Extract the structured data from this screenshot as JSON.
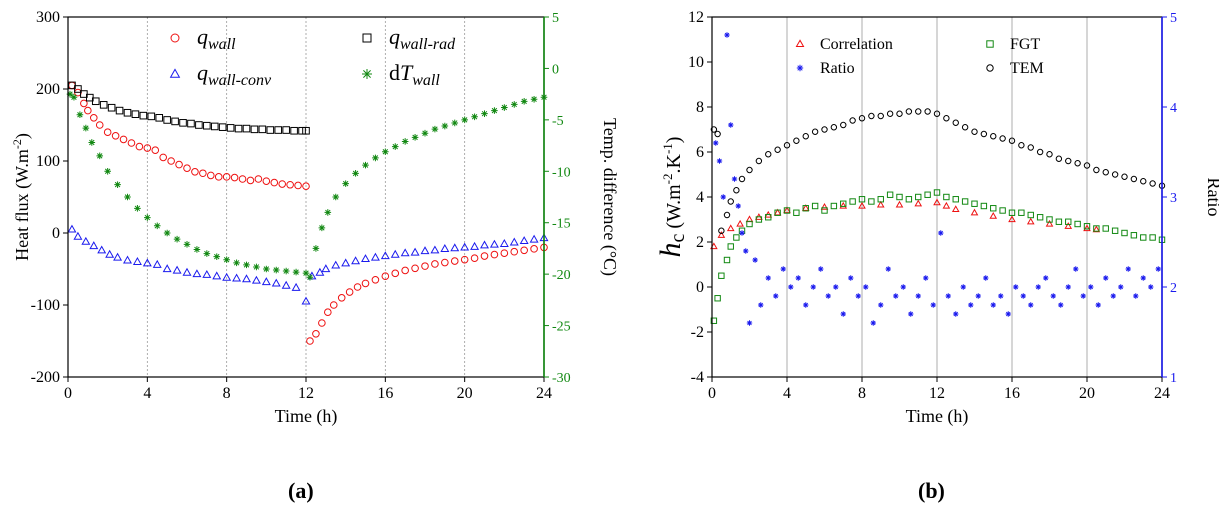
{
  "colors": {
    "red": "#ee1111",
    "blue": "#1a1aee",
    "black": "#000000",
    "green": "#118811",
    "gray": "#888888"
  },
  "panels": {
    "a_label": "(a)",
    "b_label": "(b)"
  },
  "chart_data": [
    {
      "type": "scatter",
      "xlabel": "Time (h)",
      "ylabel": "Heat flux (W.m",
      "ylabel_sup": "-2",
      "ylabel_tail": ")",
      "y2label": "Temp. difference (°C)",
      "xlim": [
        0,
        24
      ],
      "ylim": [
        -200,
        300
      ],
      "y2lim": [
        -30,
        5
      ],
      "xticks": [
        "0",
        "4",
        "8",
        "12",
        "16",
        "20",
        "24"
      ],
      "yticks": [
        "-200",
        "-100",
        "0",
        "100",
        "200",
        "300"
      ],
      "y2ticks": [
        "-30",
        "-25",
        "-20",
        "-15",
        "-10",
        "-5",
        "0",
        "5"
      ],
      "vertical_gridlines": [
        4,
        8,
        12,
        16,
        20
      ],
      "legend": [
        {
          "base": "q",
          "sub": "wall",
          "pre": "",
          "marker": "circle",
          "color": "#ee1111"
        },
        {
          "base": "q",
          "sub": "wall-rad",
          "pre": "",
          "marker": "square",
          "color": "#000000"
        },
        {
          "base": "q",
          "sub": "wall-conv",
          "pre": "",
          "marker": "triangle",
          "color": "#1a1aee"
        },
        {
          "base": "T",
          "sub": "wall",
          "pre": "d",
          "marker": "star",
          "color": "#118811"
        }
      ],
      "series": [
        {
          "name": "q_wall",
          "marker": "circle",
          "color": "#ee1111",
          "axis": "left",
          "x": [
            0.2,
            0.5,
            0.8,
            1.0,
            1.3,
            1.6,
            2.0,
            2.4,
            2.8,
            3.2,
            3.6,
            4.0,
            4.4,
            4.8,
            5.2,
            5.6,
            6.0,
            6.4,
            6.8,
            7.2,
            7.6,
            8.0,
            8.4,
            8.8,
            9.2,
            9.6,
            10.0,
            10.4,
            10.8,
            11.2,
            11.6,
            12.0,
            12.2,
            12.5,
            12.8,
            13.1,
            13.4,
            13.8,
            14.2,
            14.6,
            15.0,
            15.5,
            16.0,
            16.5,
            17.0,
            17.5,
            18.0,
            18.5,
            19.0,
            19.5,
            20.0,
            20.5,
            21.0,
            21.5,
            22.0,
            22.5,
            23.0,
            23.5,
            24.0
          ],
          "y": [
            205,
            195,
            180,
            170,
            160,
            150,
            140,
            135,
            130,
            125,
            120,
            118,
            115,
            105,
            100,
            95,
            90,
            85,
            83,
            80,
            78,
            78,
            77,
            75,
            73,
            75,
            72,
            70,
            68,
            67,
            66,
            65,
            -150,
            -140,
            -125,
            -110,
            -100,
            -90,
            -82,
            -75,
            -70,
            -65,
            -60,
            -56,
            -52,
            -49,
            -46,
            -43,
            -41,
            -39,
            -37,
            -35,
            -32,
            -30,
            -28,
            -26,
            -24,
            -22,
            -20
          ]
        },
        {
          "name": "q_wall-rad",
          "marker": "square",
          "color": "#000000",
          "axis": "left",
          "x": [
            0.2,
            0.5,
            0.8,
            1.1,
            1.4,
            1.8,
            2.2,
            2.6,
            3.0,
            3.4,
            3.8,
            4.2,
            4.6,
            5.0,
            5.4,
            5.8,
            6.2,
            6.6,
            7.0,
            7.4,
            7.8,
            8.2,
            8.6,
            9.0,
            9.4,
            9.8,
            10.2,
            10.6,
            11.0,
            11.4,
            11.8,
            12.0
          ],
          "y": [
            205,
            200,
            193,
            188,
            183,
            178,
            174,
            170,
            167,
            165,
            163,
            162,
            160,
            157,
            155,
            153,
            152,
            150,
            149,
            148,
            147,
            146,
            145,
            145,
            144,
            144,
            143,
            143,
            143,
            142,
            142,
            142
          ]
        },
        {
          "name": "q_wall-conv",
          "marker": "triangle",
          "color": "#1a1aee",
          "axis": "left",
          "x": [
            0.2,
            0.5,
            0.9,
            1.3,
            1.7,
            2.1,
            2.5,
            3.0,
            3.5,
            4.0,
            4.5,
            5.0,
            5.5,
            6.0,
            6.5,
            7.0,
            7.5,
            8.0,
            8.5,
            9.0,
            9.5,
            10.0,
            10.5,
            11.0,
            11.5,
            12.0,
            12.3,
            12.7,
            13.0,
            13.5,
            14.0,
            14.5,
            15.0,
            15.5,
            16.0,
            16.5,
            17.0,
            17.5,
            18.0,
            18.5,
            19.0,
            19.5,
            20.0,
            20.5,
            21.0,
            21.5,
            22.0,
            22.5,
            23.0,
            23.5,
            24.0
          ],
          "y": [
            5,
            -5,
            -12,
            -18,
            -24,
            -30,
            -34,
            -38,
            -40,
            -42,
            -44,
            -50,
            -52,
            -55,
            -57,
            -58,
            -60,
            -62,
            -63,
            -64,
            -66,
            -68,
            -70,
            -73,
            -76,
            -95,
            -60,
            -55,
            -50,
            -45,
            -42,
            -39,
            -36,
            -34,
            -32,
            -30,
            -28,
            -27,
            -25,
            -24,
            -22,
            -21,
            -20,
            -19,
            -17,
            -16,
            -15,
            -13,
            -11,
            -9,
            -7
          ]
        },
        {
          "name": "dT_wall",
          "marker": "star",
          "color": "#118811",
          "axis": "right",
          "x": [
            0.1,
            0.3,
            0.6,
            0.9,
            1.2,
            1.6,
            2.0,
            2.5,
            3.0,
            3.5,
            4.0,
            4.5,
            5.0,
            5.5,
            6.0,
            6.5,
            7.0,
            7.5,
            8.0,
            8.5,
            9.0,
            9.5,
            10.0,
            10.5,
            11.0,
            11.5,
            12.0,
            12.2,
            12.5,
            12.8,
            13.1,
            13.5,
            14.0,
            14.5,
            15.0,
            15.5,
            16.0,
            16.5,
            17.0,
            17.5,
            18.0,
            18.5,
            19.0,
            19.5,
            20.0,
            20.5,
            21.0,
            21.5,
            22.0,
            22.5,
            23.0,
            23.5,
            24.0
          ],
          "y": [
            -2.5,
            -2.8,
            -4.5,
            -5.8,
            -7.2,
            -8.5,
            -10.0,
            -11.3,
            -12.5,
            -13.6,
            -14.5,
            -15.3,
            -16.0,
            -16.6,
            -17.1,
            -17.6,
            -18.0,
            -18.3,
            -18.6,
            -18.9,
            -19.1,
            -19.3,
            -19.5,
            -19.6,
            -19.7,
            -19.8,
            -19.9,
            -20.3,
            -17.5,
            -15.5,
            -14.0,
            -12.5,
            -11.2,
            -10.2,
            -9.4,
            -8.7,
            -8.1,
            -7.6,
            -7.1,
            -6.7,
            -6.3,
            -5.9,
            -5.6,
            -5.3,
            -5.0,
            -4.7,
            -4.4,
            -4.1,
            -3.8,
            -3.5,
            -3.2,
            -3.0,
            -2.8
          ]
        }
      ]
    },
    {
      "type": "scatter",
      "xlabel": "Time (h)",
      "ylabel_main": "h",
      "ylabel_sub": "c",
      "ylabel_rest": " (W.m",
      "ylabel_sup1": "-2",
      "ylabel_mid": ".K",
      "ylabel_sup2": "-1",
      "ylabel_tail": ")",
      "y2label": "Ratio",
      "xlim": [
        0,
        24
      ],
      "ylim": [
        -4,
        12
      ],
      "y2lim": [
        1,
        5
      ],
      "xticks": [
        "0",
        "4",
        "8",
        "12",
        "16",
        "20",
        "24"
      ],
      "yticks": [
        "-4",
        "-2",
        "0",
        "2",
        "4",
        "6",
        "8",
        "10",
        "12"
      ],
      "y2ticks": [
        "1",
        "2",
        "3",
        "4",
        "5"
      ],
      "vertical_gridlines": [
        4,
        8,
        12,
        16,
        20
      ],
      "legend": [
        {
          "text": "Correlation",
          "marker": "triangle",
          "color": "#ee1111"
        },
        {
          "text": "FGT",
          "marker": "square",
          "color": "#118811"
        },
        {
          "text": "Ratio",
          "marker": "star",
          "color": "#1a1aee"
        },
        {
          "text": "TEM",
          "marker": "circle",
          "color": "#000000"
        }
      ],
      "series": [
        {
          "name": "Correlation",
          "marker": "triangle",
          "color": "#ee1111",
          "axis": "left",
          "x": [
            0.1,
            0.5,
            1.0,
            1.5,
            2.0,
            2.5,
            3.0,
            3.5,
            4.0,
            5.0,
            6.0,
            7.0,
            8.0,
            9.0,
            10.0,
            11.0,
            12.0,
            12.5,
            13.0,
            14.0,
            15.0,
            16.0,
            17.0,
            18.0,
            19.0,
            20.0,
            20.5
          ],
          "y": [
            1.8,
            2.3,
            2.6,
            2.8,
            3.0,
            3.1,
            3.2,
            3.3,
            3.4,
            3.5,
            3.55,
            3.6,
            3.6,
            3.65,
            3.65,
            3.7,
            3.75,
            3.6,
            3.45,
            3.3,
            3.15,
            3.0,
            2.9,
            2.8,
            2.7,
            2.6,
            2.55
          ]
        },
        {
          "name": "FGT",
          "marker": "square",
          "color": "#118811",
          "axis": "left",
          "x": [
            0.1,
            0.3,
            0.5,
            0.8,
            1.0,
            1.3,
            1.6,
            2.0,
            2.5,
            3.0,
            3.5,
            4.0,
            4.5,
            5.0,
            5.5,
            6.0,
            6.5,
            7.0,
            7.5,
            8.0,
            8.5,
            9.0,
            9.5,
            10.0,
            10.5,
            11.0,
            11.5,
            12.0,
            12.5,
            13.0,
            13.5,
            14.0,
            14.5,
            15.0,
            15.5,
            16.0,
            16.5,
            17.0,
            17.5,
            18.0,
            18.5,
            19.0,
            19.5,
            20.0,
            20.5,
            21.0,
            21.5,
            22.0,
            22.5,
            23.0,
            23.5,
            24.0
          ],
          "y": [
            -1.5,
            -0.5,
            0.5,
            1.2,
            1.8,
            2.2,
            2.5,
            2.8,
            3.0,
            3.1,
            3.3,
            3.4,
            3.3,
            3.5,
            3.6,
            3.4,
            3.6,
            3.7,
            3.8,
            3.9,
            3.8,
            3.9,
            4.1,
            4.0,
            3.9,
            4.0,
            4.1,
            4.2,
            4.0,
            3.9,
            3.8,
            3.7,
            3.6,
            3.5,
            3.4,
            3.3,
            3.3,
            3.2,
            3.1,
            3.0,
            2.9,
            2.9,
            2.8,
            2.7,
            2.6,
            2.6,
            2.5,
            2.4,
            2.3,
            2.2,
            2.2,
            2.1
          ]
        },
        {
          "name": "TEM",
          "marker": "circle",
          "color": "#000000",
          "axis": "left",
          "x": [
            0.1,
            0.3,
            0.5,
            0.8,
            1.0,
            1.3,
            1.6,
            2.0,
            2.5,
            3.0,
            3.5,
            4.0,
            4.5,
            5.0,
            5.5,
            6.0,
            6.5,
            7.0,
            7.5,
            8.0,
            8.5,
            9.0,
            9.5,
            10.0,
            10.5,
            11.0,
            11.5,
            12.0,
            12.5,
            13.0,
            13.5,
            14.0,
            14.5,
            15.0,
            15.5,
            16.0,
            16.5,
            17.0,
            17.5,
            18.0,
            18.5,
            19.0,
            19.5,
            20.0,
            20.5,
            21.0,
            21.5,
            22.0,
            22.5,
            23.0,
            23.5,
            24.0
          ],
          "y": [
            7.0,
            6.8,
            2.5,
            3.2,
            3.8,
            4.3,
            4.8,
            5.2,
            5.6,
            5.9,
            6.1,
            6.3,
            6.5,
            6.7,
            6.9,
            7.0,
            7.1,
            7.2,
            7.4,
            7.5,
            7.6,
            7.6,
            7.7,
            7.7,
            7.8,
            7.8,
            7.8,
            7.7,
            7.5,
            7.3,
            7.1,
            6.9,
            6.8,
            6.7,
            6.6,
            6.5,
            6.3,
            6.2,
            6.0,
            5.9,
            5.7,
            5.6,
            5.5,
            5.4,
            5.2,
            5.1,
            5.0,
            4.9,
            4.8,
            4.7,
            4.6,
            4.5
          ]
        },
        {
          "name": "Ratio",
          "marker": "star",
          "color": "#1a1aee",
          "axis": "right",
          "x": [
            0.2,
            0.4,
            0.6,
            0.8,
            1.0,
            1.2,
            1.4,
            1.6,
            1.8,
            2.0,
            2.3,
            2.6,
            3.0,
            3.4,
            3.8,
            4.2,
            4.6,
            5.0,
            5.4,
            5.8,
            6.2,
            6.6,
            7.0,
            7.4,
            7.8,
            8.2,
            8.6,
            9.0,
            9.4,
            9.8,
            10.2,
            10.6,
            11.0,
            11.4,
            11.8,
            12.2,
            12.6,
            13.0,
            13.4,
            13.8,
            14.2,
            14.6,
            15.0,
            15.4,
            15.8,
            16.2,
            16.6,
            17.0,
            17.4,
            17.8,
            18.2,
            18.6,
            19.0,
            19.4,
            19.8,
            20.2,
            20.6,
            21.0,
            21.4,
            21.8,
            22.2,
            22.6,
            23.0,
            23.4,
            23.8
          ],
          "y": [
            3.6,
            3.4,
            3.0,
            4.8,
            3.8,
            3.2,
            2.9,
            2.6,
            2.4,
            1.6,
            2.3,
            1.8,
            2.1,
            1.9,
            2.2,
            2.0,
            2.1,
            1.8,
            2.0,
            2.2,
            1.9,
            2.0,
            1.7,
            2.1,
            1.9,
            2.0,
            1.6,
            1.8,
            2.2,
            1.9,
            2.0,
            1.7,
            1.9,
            2.1,
            1.8,
            2.6,
            1.9,
            1.7,
            2.0,
            1.8,
            1.9,
            2.1,
            1.8,
            1.9,
            1.7,
            2.0,
            1.9,
            1.8,
            2.0,
            2.1,
            1.9,
            1.8,
            2.0,
            2.2,
            1.9,
            2.0,
            1.8,
            2.1,
            1.9,
            2.0,
            2.2,
            1.9,
            2.1,
            2.0,
            2.2
          ]
        }
      ]
    }
  ]
}
